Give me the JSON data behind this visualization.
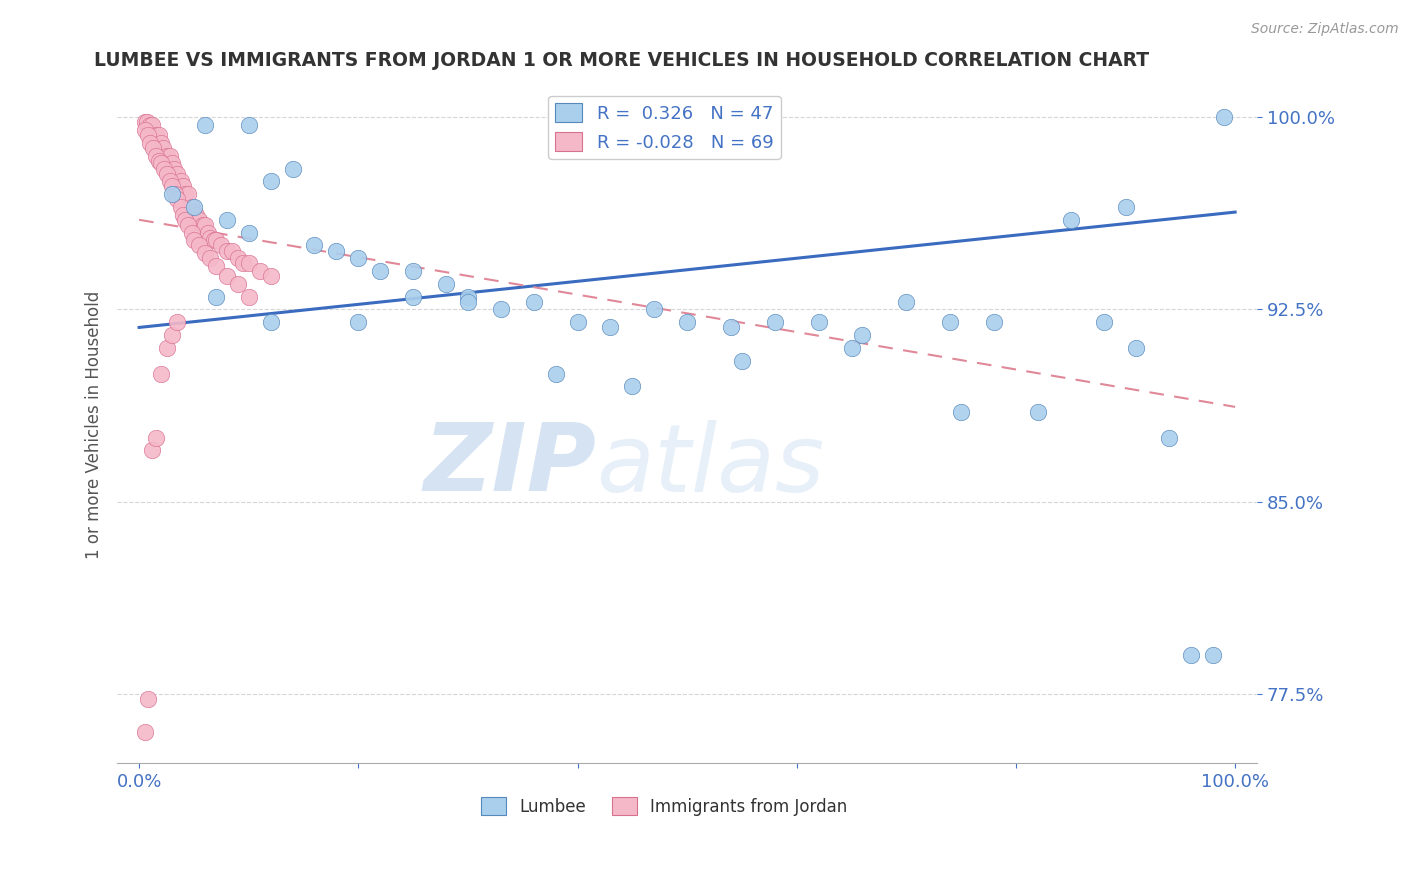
{
  "title": "LUMBEE VS IMMIGRANTS FROM JORDAN 1 OR MORE VEHICLES IN HOUSEHOLD CORRELATION CHART",
  "source_text": "Source: ZipAtlas.com",
  "ylabel": "1 or more Vehicles in Household",
  "watermark_zip": "ZIP",
  "watermark_atlas": "atlas",
  "xlim": [
    -0.02,
    1.02
  ],
  "ylim": [
    0.748,
    1.012
  ],
  "yticks": [
    0.775,
    0.85,
    0.925,
    1.0
  ],
  "ytick_labels": [
    "77.5%",
    "85.0%",
    "92.5%",
    "100.0%"
  ],
  "xticks": [
    0.0,
    0.2,
    0.4,
    0.6,
    0.8,
    1.0
  ],
  "xtick_labels": [
    "0.0%",
    "",
    "",
    "",
    "",
    "100.0%"
  ],
  "legend_R1": "0.326",
  "legend_N1": "47",
  "legend_R2": "-0.028",
  "legend_N2": "69",
  "lumbee_color": "#aacfed",
  "jordan_color": "#f5b8c8",
  "trend_blue": "#3a6bbf",
  "trend_pink_color": "#e08898",
  "axis_label_color": "#4472c4",
  "title_color": "#333333",
  "grid_color": "#cccccc",
  "lumbee_x": [
    0.06,
    0.1,
    0.12,
    0.14,
    0.03,
    0.05,
    0.08,
    0.1,
    0.16,
    0.18,
    0.2,
    0.22,
    0.25,
    0.28,
    0.3,
    0.33,
    0.36,
    0.4,
    0.43,
    0.47,
    0.5,
    0.54,
    0.58,
    0.62,
    0.66,
    0.7,
    0.74,
    0.78,
    0.82,
    0.85,
    0.88,
    0.91,
    0.94,
    0.96,
    0.98,
    0.99,
    0.55,
    0.65,
    0.75,
    0.9,
    0.07,
    0.12,
    0.2,
    0.25,
    0.3,
    0.38,
    0.45
  ],
  "lumbee_y": [
    0.997,
    0.997,
    0.975,
    0.98,
    0.97,
    0.965,
    0.96,
    0.955,
    0.95,
    0.948,
    0.945,
    0.94,
    0.94,
    0.935,
    0.93,
    0.925,
    0.928,
    0.92,
    0.918,
    0.925,
    0.92,
    0.918,
    0.92,
    0.92,
    0.915,
    0.928,
    0.92,
    0.92,
    0.885,
    0.96,
    0.92,
    0.91,
    0.875,
    0.79,
    0.79,
    1.0,
    0.905,
    0.91,
    0.885,
    0.965,
    0.93,
    0.92,
    0.92,
    0.93,
    0.928,
    0.9,
    0.895
  ],
  "jordan_x": [
    0.005,
    0.007,
    0.01,
    0.012,
    0.015,
    0.018,
    0.02,
    0.022,
    0.025,
    0.028,
    0.03,
    0.032,
    0.035,
    0.038,
    0.04,
    0.042,
    0.045,
    0.048,
    0.05,
    0.052,
    0.055,
    0.058,
    0.06,
    0.063,
    0.065,
    0.068,
    0.07,
    0.075,
    0.08,
    0.085,
    0.09,
    0.095,
    0.1,
    0.11,
    0.12,
    0.005,
    0.008,
    0.01,
    0.013,
    0.015,
    0.018,
    0.02,
    0.023,
    0.025,
    0.028,
    0.03,
    0.033,
    0.035,
    0.038,
    0.04,
    0.042,
    0.045,
    0.048,
    0.05,
    0.055,
    0.06,
    0.065,
    0.07,
    0.08,
    0.09,
    0.1,
    0.005,
    0.008,
    0.012,
    0.015,
    0.02,
    0.025,
    0.03,
    0.035
  ],
  "jordan_y": [
    0.998,
    0.998,
    0.997,
    0.997,
    0.993,
    0.993,
    0.99,
    0.988,
    0.985,
    0.985,
    0.982,
    0.98,
    0.978,
    0.975,
    0.973,
    0.97,
    0.97,
    0.965,
    0.963,
    0.962,
    0.96,
    0.958,
    0.958,
    0.955,
    0.953,
    0.952,
    0.952,
    0.95,
    0.948,
    0.948,
    0.945,
    0.943,
    0.943,
    0.94,
    0.938,
    0.995,
    0.993,
    0.99,
    0.988,
    0.985,
    0.983,
    0.982,
    0.98,
    0.978,
    0.975,
    0.973,
    0.97,
    0.968,
    0.965,
    0.962,
    0.96,
    0.958,
    0.955,
    0.952,
    0.95,
    0.947,
    0.945,
    0.942,
    0.938,
    0.935,
    0.93,
    0.76,
    0.773,
    0.87,
    0.875,
    0.9,
    0.91,
    0.915,
    0.92
  ],
  "blue_trend_x": [
    0.0,
    1.0
  ],
  "blue_trend_y": [
    0.918,
    0.963
  ],
  "pink_trend_x": [
    0.0,
    1.0
  ],
  "pink_trend_y": [
    0.96,
    0.887
  ]
}
